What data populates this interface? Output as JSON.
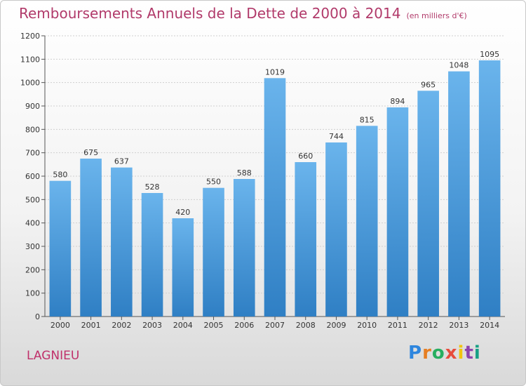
{
  "chart_data": {
    "type": "bar",
    "title": "Remboursements Annuels de la Dette de 2000 à 2014",
    "subtitle": "(en milliers d'€)",
    "xlabel": "",
    "ylabel": "",
    "categories": [
      "2000",
      "2001",
      "2002",
      "2003",
      "2004",
      "2005",
      "2006",
      "2007",
      "2008",
      "2009",
      "2010",
      "2011",
      "2012",
      "2013",
      "2014"
    ],
    "values": [
      580,
      675,
      637,
      528,
      420,
      550,
      588,
      1019,
      660,
      744,
      815,
      894,
      965,
      1048,
      1095
    ],
    "ylim": [
      0,
      1200
    ],
    "yticks": [
      0,
      100,
      200,
      300,
      400,
      500,
      600,
      700,
      800,
      900,
      1000,
      1100,
      1200
    ],
    "grid": true,
    "colors": {
      "bar_top": "#6ab4ec",
      "bar_bottom": "#2f7fc4",
      "title": "#b13a6a"
    }
  },
  "footer": {
    "location": "LAGNIEU",
    "brand": "Proxiti"
  }
}
